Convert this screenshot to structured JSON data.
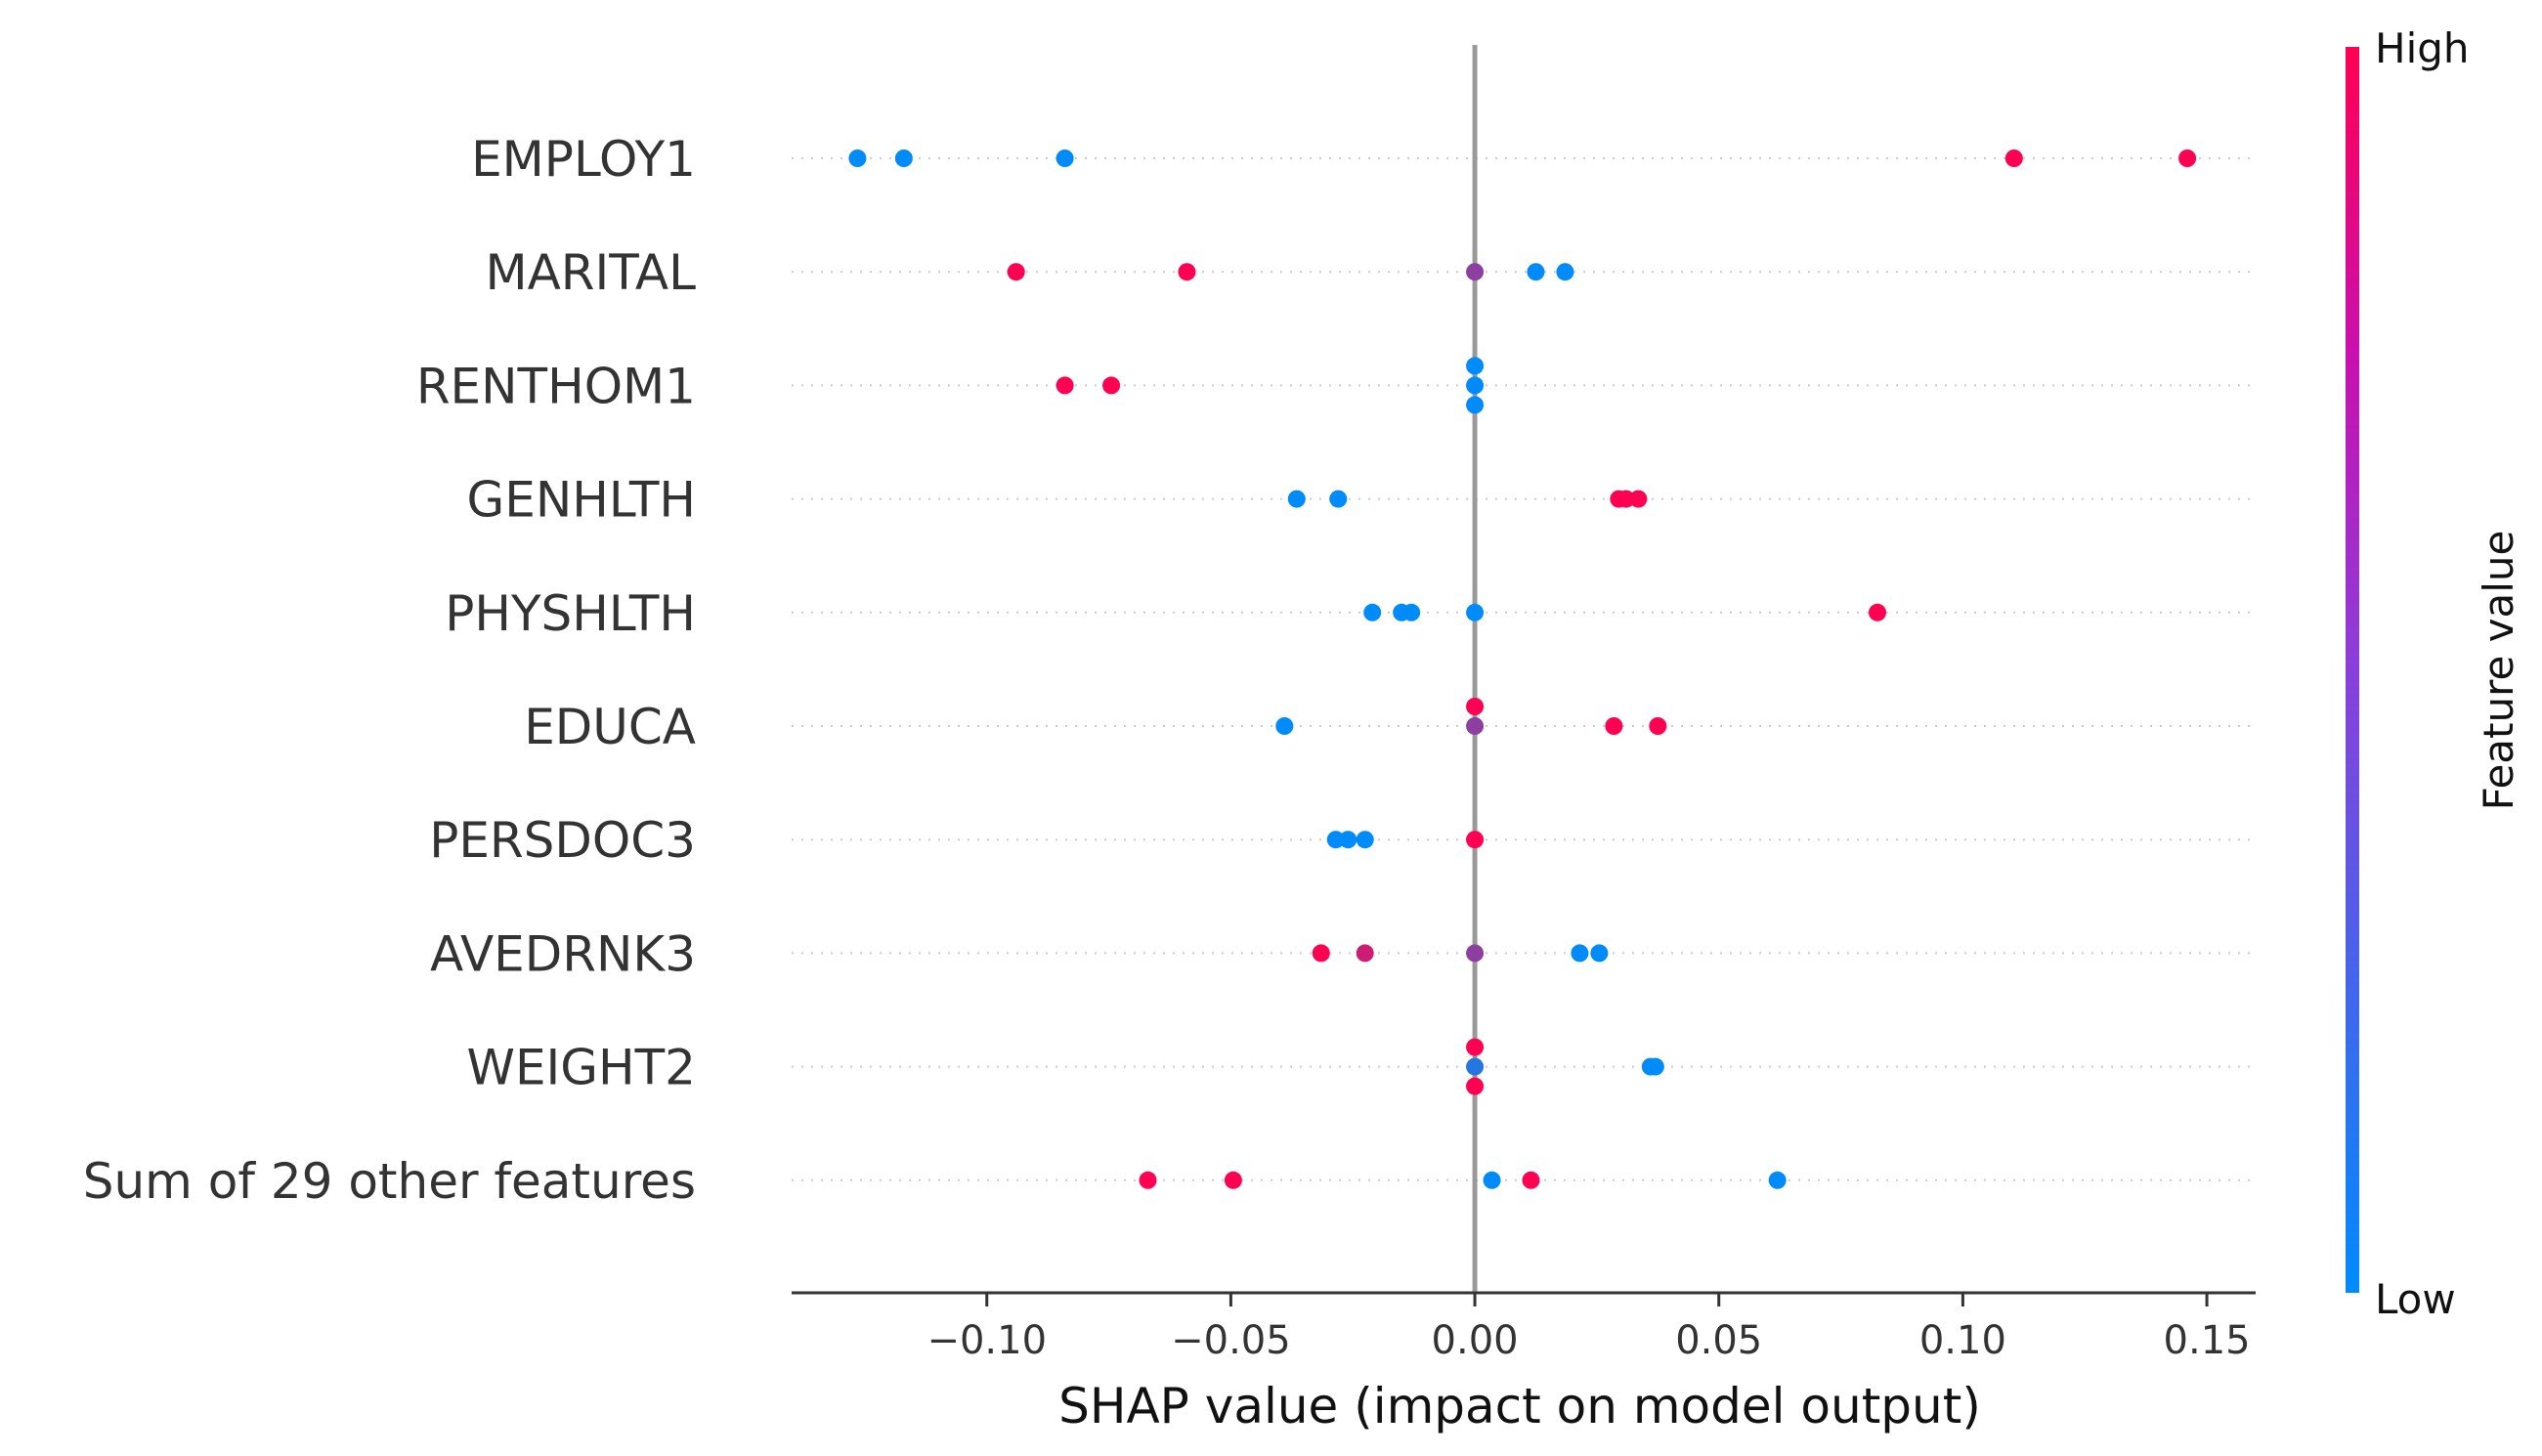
{
  "chart_data": {
    "type": "scatter",
    "title": "",
    "xlabel": "SHAP value (impact on model output)",
    "xlim": [
      -0.14,
      0.16
    ],
    "xticks": [
      -0.1,
      -0.05,
      0.0,
      0.05,
      0.1,
      0.15
    ],
    "xtick_labels": [
      "−0.10",
      "−0.05",
      "0.00",
      "0.05",
      "0.10",
      "0.15"
    ],
    "grid": false,
    "colorbar": {
      "title": "Feature value",
      "high_label": "High",
      "low_label": "Low",
      "low_color": "#008bfb",
      "high_color": "#ff0052"
    },
    "features": [
      {
        "name": "EMPLOY1",
        "points": [
          {
            "x": -0.1265,
            "v": 0.0,
            "offset": 0
          },
          {
            "x": -0.117,
            "v": 0.0,
            "offset": 0
          },
          {
            "x": -0.084,
            "v": 0.0,
            "offset": 0
          },
          {
            "x": 0.1105,
            "v": 1.0,
            "offset": 0
          },
          {
            "x": 0.146,
            "v": 1.0,
            "offset": 0
          }
        ]
      },
      {
        "name": "MARITAL",
        "points": [
          {
            "x": -0.094,
            "v": 1.0,
            "offset": 0
          },
          {
            "x": -0.059,
            "v": 1.0,
            "offset": 0
          },
          {
            "x": 0.0,
            "v": 0.55,
            "offset": 0
          },
          {
            "x": 0.0125,
            "v": 0.0,
            "offset": 0
          },
          {
            "x": 0.0185,
            "v": 0.0,
            "offset": 0
          }
        ]
      },
      {
        "name": "RENTHOM1",
        "points": [
          {
            "x": -0.084,
            "v": 1.0,
            "offset": 0
          },
          {
            "x": -0.0745,
            "v": 1.0,
            "offset": 0
          },
          {
            "x": 0.0,
            "v": 0.0,
            "offset": -1
          },
          {
            "x": 0.0,
            "v": 0.0,
            "offset": 0
          },
          {
            "x": 0.0,
            "v": 0.0,
            "offset": 1
          }
        ]
      },
      {
        "name": "GENHLTH",
        "points": [
          {
            "x": -0.0365,
            "v": 0.0,
            "offset": 0
          },
          {
            "x": -0.028,
            "v": 0.0,
            "offset": 0
          },
          {
            "x": 0.0295,
            "v": 1.0,
            "offset": 0
          },
          {
            "x": 0.031,
            "v": 1.0,
            "offset": 0
          },
          {
            "x": 0.0335,
            "v": 1.0,
            "offset": 0
          }
        ]
      },
      {
        "name": "PHYSHLTH",
        "points": [
          {
            "x": -0.021,
            "v": 0.0,
            "offset": 0
          },
          {
            "x": -0.015,
            "v": 0.0,
            "offset": 0
          },
          {
            "x": -0.013,
            "v": 0.0,
            "offset": 0
          },
          {
            "x": 0.0,
            "v": 0.0,
            "offset": 0
          },
          {
            "x": 0.0825,
            "v": 1.0,
            "offset": 0
          }
        ]
      },
      {
        "name": "EDUCA",
        "points": [
          {
            "x": -0.039,
            "v": 0.0,
            "offset": 0
          },
          {
            "x": 0.0,
            "v": 1.0,
            "offset": -1
          },
          {
            "x": 0.0,
            "v": 0.55,
            "offset": 0
          },
          {
            "x": 0.0285,
            "v": 1.0,
            "offset": 0
          },
          {
            "x": 0.0375,
            "v": 1.0,
            "offset": 0
          }
        ]
      },
      {
        "name": "PERSDOC3",
        "points": [
          {
            "x": -0.0285,
            "v": 0.0,
            "offset": 0
          },
          {
            "x": -0.026,
            "v": 0.0,
            "offset": 0
          },
          {
            "x": -0.0225,
            "v": 0.0,
            "offset": 0
          },
          {
            "x": 0.0,
            "v": 1.0,
            "offset": 0
          }
        ]
      },
      {
        "name": "AVEDRNK3",
        "points": [
          {
            "x": -0.0315,
            "v": 1.0,
            "offset": 0
          },
          {
            "x": -0.0225,
            "v": 0.8,
            "offset": 0
          },
          {
            "x": 0.0,
            "v": 0.55,
            "offset": 0
          },
          {
            "x": 0.0215,
            "v": 0.0,
            "offset": 0
          },
          {
            "x": 0.0255,
            "v": 0.0,
            "offset": 0
          }
        ]
      },
      {
        "name": "WEIGHT2",
        "points": [
          {
            "x": 0.0,
            "v": 1.0,
            "offset": -1
          },
          {
            "x": 0.0,
            "v": 0.15,
            "offset": 0
          },
          {
            "x": 0.0,
            "v": 1.0,
            "offset": 1
          },
          {
            "x": 0.036,
            "v": 0.0,
            "offset": 0
          },
          {
            "x": 0.037,
            "v": 0.0,
            "offset": 0
          }
        ]
      },
      {
        "name": "Sum of 29 other features",
        "points": [
          {
            "x": -0.067,
            "v": 1.0,
            "offset": 0
          },
          {
            "x": -0.0495,
            "v": 1.0,
            "offset": 0
          },
          {
            "x": 0.0035,
            "v": 0.0,
            "offset": 0
          },
          {
            "x": 0.0115,
            "v": 1.0,
            "offset": 0
          },
          {
            "x": 0.062,
            "v": 0.0,
            "offset": 0
          }
        ]
      }
    ]
  }
}
